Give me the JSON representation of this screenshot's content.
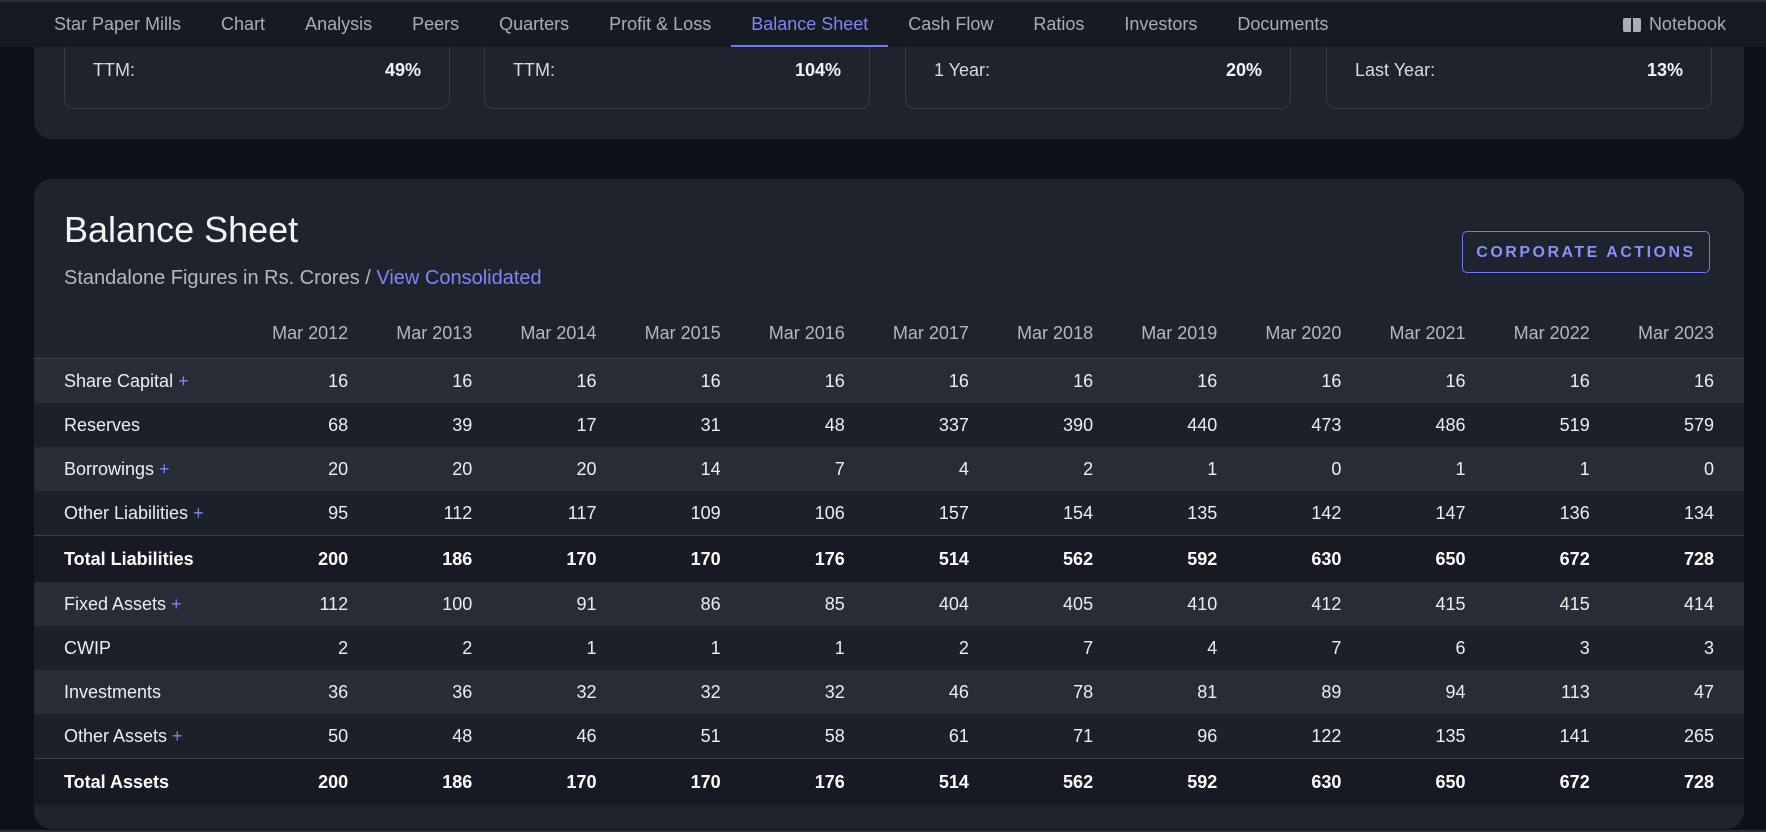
{
  "nav": {
    "tabs": [
      "Star Paper Mills",
      "Chart",
      "Analysis",
      "Peers",
      "Quarters",
      "Profit & Loss",
      "Balance Sheet",
      "Cash Flow",
      "Ratios",
      "Investors",
      "Documents"
    ],
    "active_index": 6,
    "notebook_label": "Notebook"
  },
  "returns": [
    {
      "label": "TTM:",
      "value": "49%"
    },
    {
      "label": "TTM:",
      "value": "104%"
    },
    {
      "label": "1 Year:",
      "value": "20%"
    },
    {
      "label": "Last Year:",
      "value": "13%"
    }
  ],
  "balance_sheet": {
    "title": "Balance Sheet",
    "subtitle": "Standalone Figures in Rs. Crores / ",
    "consolidated_link": "View Consolidated",
    "corporate_actions": "CORPORATE ACTIONS",
    "columns": [
      "Mar 2012",
      "Mar 2013",
      "Mar 2014",
      "Mar 2015",
      "Mar 2016",
      "Mar 2017",
      "Mar 2018",
      "Mar 2019",
      "Mar 2020",
      "Mar 2021",
      "Mar 2022",
      "Mar 2023"
    ],
    "rows": [
      {
        "label": "Share Capital",
        "expandable": true,
        "total": false,
        "values": [
          "16",
          "16",
          "16",
          "16",
          "16",
          "16",
          "16",
          "16",
          "16",
          "16",
          "16",
          "16"
        ]
      },
      {
        "label": "Reserves",
        "expandable": false,
        "total": false,
        "values": [
          "68",
          "39",
          "17",
          "31",
          "48",
          "337",
          "390",
          "440",
          "473",
          "486",
          "519",
          "579"
        ]
      },
      {
        "label": "Borrowings",
        "expandable": true,
        "total": false,
        "values": [
          "20",
          "20",
          "20",
          "14",
          "7",
          "4",
          "2",
          "1",
          "0",
          "1",
          "1",
          "0"
        ]
      },
      {
        "label": "Other Liabilities",
        "expandable": true,
        "total": false,
        "values": [
          "95",
          "112",
          "117",
          "109",
          "106",
          "157",
          "154",
          "135",
          "142",
          "147",
          "136",
          "134"
        ]
      },
      {
        "label": "Total Liabilities",
        "expandable": false,
        "total": true,
        "values": [
          "200",
          "186",
          "170",
          "170",
          "176",
          "514",
          "562",
          "592",
          "630",
          "650",
          "672",
          "728"
        ]
      },
      {
        "label": "Fixed Assets",
        "expandable": true,
        "total": false,
        "values": [
          "112",
          "100",
          "91",
          "86",
          "85",
          "404",
          "405",
          "410",
          "412",
          "415",
          "415",
          "414"
        ]
      },
      {
        "label": "CWIP",
        "expandable": false,
        "total": false,
        "values": [
          "2",
          "2",
          "1",
          "1",
          "1",
          "2",
          "7",
          "4",
          "7",
          "6",
          "3",
          "3"
        ]
      },
      {
        "label": "Investments",
        "expandable": false,
        "total": false,
        "values": [
          "36",
          "36",
          "32",
          "32",
          "32",
          "46",
          "78",
          "81",
          "89",
          "94",
          "113",
          "47"
        ]
      },
      {
        "label": "Other Assets",
        "expandable": true,
        "total": false,
        "values": [
          "50",
          "48",
          "46",
          "51",
          "58",
          "61",
          "71",
          "96",
          "122",
          "135",
          "141",
          "265"
        ]
      },
      {
        "label": "Total Assets",
        "expandable": false,
        "total": true,
        "values": [
          "200",
          "186",
          "170",
          "170",
          "176",
          "514",
          "562",
          "592",
          "630",
          "650",
          "672",
          "728"
        ]
      }
    ]
  }
}
